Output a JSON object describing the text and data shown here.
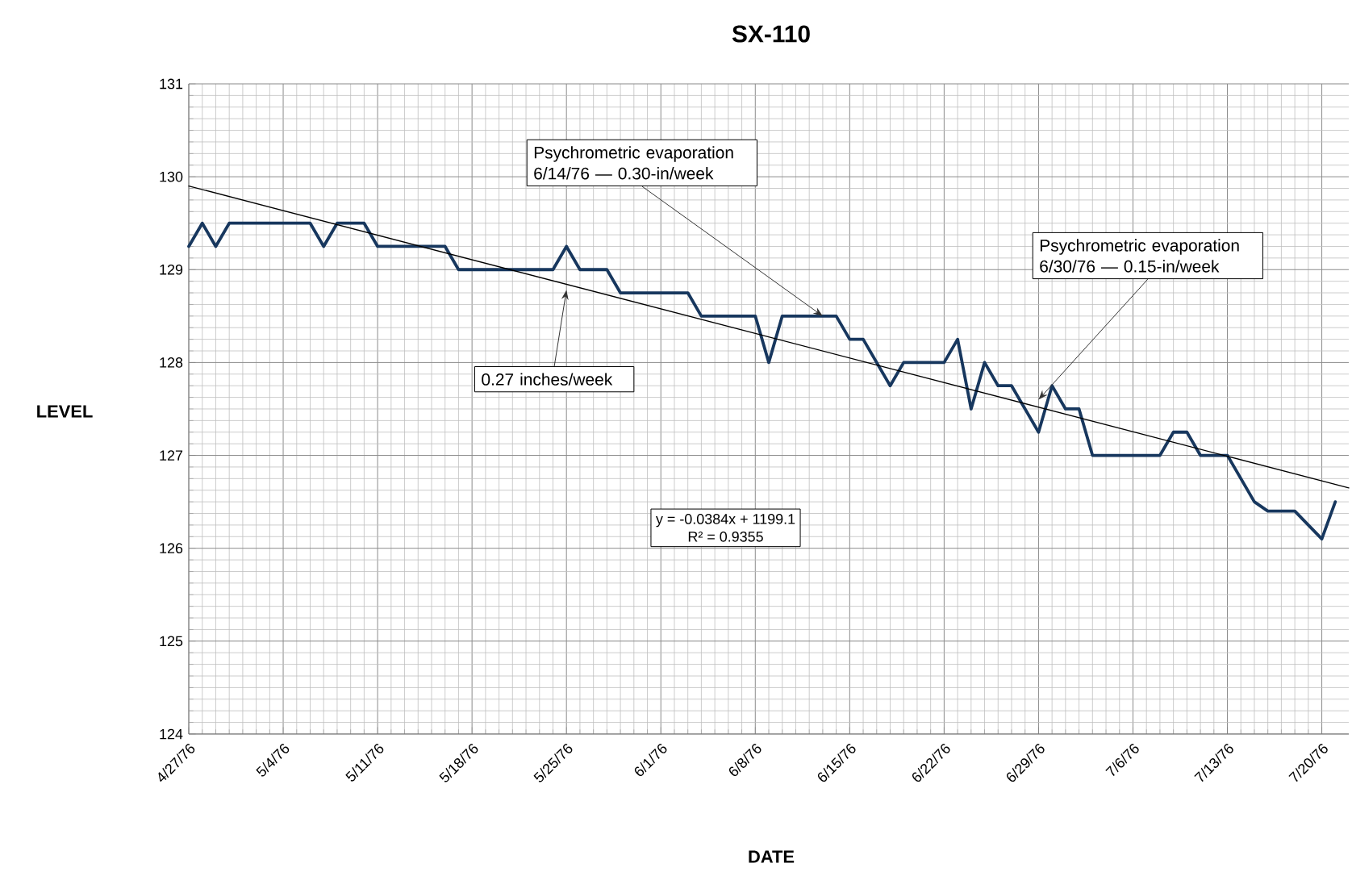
{
  "chart_data": {
    "type": "line",
    "title": "SX-110",
    "xlabel": "DATE",
    "ylabel": "LEVEL",
    "x": [
      "1976-04-27",
      "1976-04-28",
      "1976-04-29",
      "1976-04-30",
      "1976-05-06",
      "1976-05-07",
      "1976-05-08",
      "1976-05-10",
      "1976-05-11",
      "1976-05-16",
      "1976-05-17",
      "1976-05-24",
      "1976-05-25",
      "1976-05-26",
      "1976-05-28",
      "1976-05-29",
      "1976-06-03",
      "1976-06-04",
      "1976-06-08",
      "1976-06-09",
      "1976-06-10",
      "1976-06-14",
      "1976-06-15",
      "1976-06-16",
      "1976-06-18",
      "1976-06-19",
      "1976-06-22",
      "1976-06-23",
      "1976-06-24",
      "1976-06-25",
      "1976-06-26",
      "1976-06-27",
      "1976-06-28",
      "1976-06-29",
      "1976-06-30",
      "1976-07-01",
      "1976-07-02",
      "1976-07-03",
      "1976-07-08",
      "1976-07-09",
      "1976-07-10",
      "1976-07-11",
      "1976-07-13",
      "1976-07-15",
      "1976-07-16",
      "1976-07-18",
      "1976-07-20",
      "1976-07-21"
    ],
    "series": [
      {
        "color": "#17375e",
        "values": [
          129.25,
          129.5,
          129.25,
          129.5,
          129.5,
          129.25,
          129.5,
          129.5,
          129.25,
          129.25,
          129.0,
          129.0,
          129.25,
          129.0,
          129.0,
          128.75,
          128.75,
          128.5,
          128.5,
          128.0,
          128.5,
          128.5,
          128.25,
          128.25,
          127.75,
          128.0,
          128.0,
          128.25,
          127.5,
          128.0,
          127.75,
          127.75,
          127.5,
          127.25,
          127.75,
          127.5,
          127.5,
          127.0,
          127.0,
          127.25,
          127.25,
          127.0,
          127.0,
          126.5,
          126.4,
          126.4,
          126.1,
          126.5
        ]
      },
      {
        "color": "#000000",
        "x": [
          "1976-04-27",
          "1976-07-22"
        ],
        "values": [
          129.9,
          126.65
        ]
      }
    ],
    "xlim": [
      "1976-04-27",
      "1976-07-22"
    ],
    "xticks": [
      {
        "value": "1976-04-27",
        "label": "4/27/76"
      },
      {
        "value": "1976-05-04",
        "label": "5/4/76"
      },
      {
        "value": "1976-05-11",
        "label": "5/11/76"
      },
      {
        "value": "1976-05-18",
        "label": "5/18/76"
      },
      {
        "value": "1976-05-25",
        "label": "5/25/76"
      },
      {
        "value": "1976-06-01",
        "label": "6/1/76"
      },
      {
        "value": "1976-06-08",
        "label": "6/8/76"
      },
      {
        "value": "1976-06-15",
        "label": "6/15/76"
      },
      {
        "value": "1976-06-22",
        "label": "6/22/76"
      },
      {
        "value": "1976-06-29",
        "label": "6/29/76"
      },
      {
        "value": "1976-07-06",
        "label": "7/6/76"
      },
      {
        "value": "1976-07-13",
        "label": "7/13/76"
      },
      {
        "value": "1976-07-20",
        "label": "7/20/76"
      }
    ],
    "ylim": [
      124,
      131
    ],
    "yticks": [
      124,
      125,
      126,
      127,
      128,
      129,
      130,
      131
    ],
    "grid": true,
    "marker": "none",
    "line_style": "solid",
    "annotations": [
      {
        "text": "0.27 inches/week",
        "x": "1976-05-25",
        "y": 128.78
      },
      {
        "text": "Psychrometric evaporation 6/14/76 — 0.30-in/week",
        "x": "1976-06-13",
        "y": 128.5
      },
      {
        "text": "Psychrometric evaporation 6/30/76 — 0.15-in/week",
        "x": "1976-06-29",
        "y": 127.6
      },
      "y = -0.0384x + 1199.1",
      "R² = 0.9355"
    ]
  }
}
